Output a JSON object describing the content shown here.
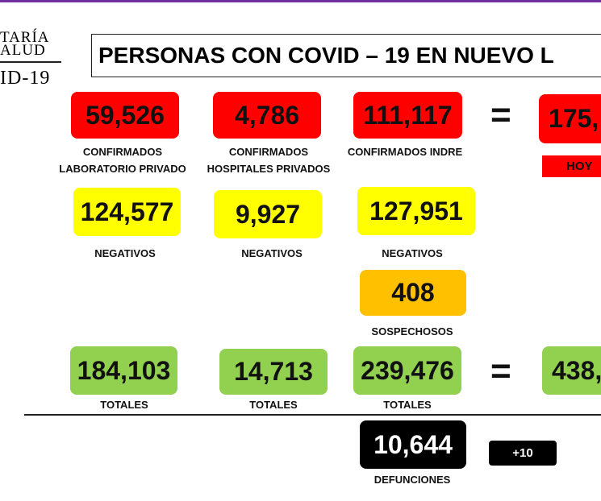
{
  "logo": {
    "lines": [
      "TARÍA",
      "ALUD",
      "ID-19"
    ]
  },
  "title": "PERSONAS CON COVID – 19 EN NUEVO L",
  "confirmed": {
    "boxes": [
      {
        "value": "59,526",
        "label": [
          "CONFIRMADOS",
          "LABORATORIO PRIVADO"
        ]
      },
      {
        "value": "4,786",
        "label": [
          "CONFIRMADOS",
          "HOSPITALES PRIVADOS"
        ]
      },
      {
        "value": "111,117",
        "label": [
          "CONFIRMADOS INDRE"
        ]
      }
    ],
    "equals": "=",
    "total": {
      "value": "175,",
      "label": "HOY"
    }
  },
  "negatives": [
    {
      "value": "124,577",
      "label": "NEGATIVOS"
    },
    {
      "value": "9,927",
      "label": "NEGATIVOS"
    },
    {
      "value": "127,951",
      "label": "NEGATIVOS"
    }
  ],
  "suspects": {
    "value": "408",
    "label": "SOSPECHOSOS"
  },
  "totals": {
    "boxes": [
      {
        "value": "184,103",
        "label": "TOTALES"
      },
      {
        "value": "14,713",
        "label": "TOTALES"
      },
      {
        "value": "239,476",
        "label": "TOTALES"
      }
    ],
    "equals": "=",
    "total": {
      "value": "438,"
    }
  },
  "deaths": {
    "value": "10,644",
    "label": "DEFUNCIONES",
    "change": "+10"
  }
}
